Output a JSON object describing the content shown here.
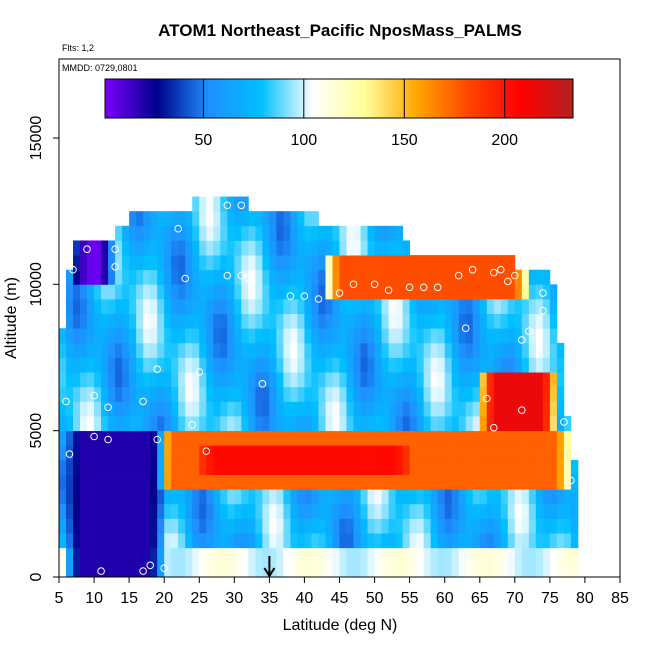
{
  "header": {
    "title": "ATOM1 Northeast_Pacific NposMass_PALMS",
    "flights": "Flts: 1,2",
    "dates": "MMDD: 0729,0801"
  },
  "chart_data": {
    "type": "heatmap",
    "title": "ATOM1 Northeast_Pacific NposMass_PALMS",
    "xlabel": "Latitude (deg N)",
    "ylabel": "Altitude (m)",
    "xlim": [
      5,
      85
    ],
    "ylim": [
      0,
      17700
    ],
    "x_ticks": [
      5,
      10,
      15,
      20,
      25,
      30,
      35,
      40,
      45,
      50,
      55,
      60,
      65,
      70,
      75,
      80,
      85
    ],
    "y_ticks": [
      0,
      5000,
      10000,
      15000
    ],
    "grid": false,
    "colorbar": {
      "range": [
        1,
        234
      ],
      "ticks": [
        50,
        100,
        150,
        200
      ],
      "colors": [
        "#7a00ff",
        "#00008b",
        "#1e90ff",
        "#00bfff",
        "#ffffff",
        "#ffff99",
        "#ffa500",
        "#ff4500",
        "#ff0000",
        "#b22222"
      ],
      "placement": "top"
    },
    "marker_latitude": 35,
    "cell_lat_step": 1,
    "cell_alt_step": 500,
    "altitude_profile": {
      "top_altitude": [
        {
          "lat": 5,
          "alt": 6500
        },
        {
          "lat": 6,
          "alt": 10000
        },
        {
          "lat": 8,
          "alt": 11500
        },
        {
          "lat": 13,
          "alt": 11500
        },
        {
          "lat": 15,
          "alt": 12000
        },
        {
          "lat": 22,
          "alt": 12500
        },
        {
          "lat": 24,
          "alt": 12500
        },
        {
          "lat": 28,
          "alt": 13000
        },
        {
          "lat": 31,
          "alt": 13000
        },
        {
          "lat": 32,
          "alt": 12500
        },
        {
          "lat": 42,
          "alt": 12000
        },
        {
          "lat": 53,
          "alt": 12000
        },
        {
          "lat": 55,
          "alt": 11000
        },
        {
          "lat": 60,
          "alt": 11000
        },
        {
          "lat": 67,
          "alt": 11000
        },
        {
          "lat": 70,
          "alt": 10500
        },
        {
          "lat": 75,
          "alt": 10000
        },
        {
          "lat": 76,
          "alt": 9500
        },
        {
          "lat": 77,
          "alt": 6000
        },
        {
          "lat": 79,
          "alt": 3000
        }
      ]
    },
    "value_bands": [
      {
        "name": "upper-orange-layer",
        "lat_min": 43,
        "lat_max": 72,
        "alt_min": 9500,
        "alt_max": 11000,
        "value": 180
      },
      {
        "name": "mid-orange-layer",
        "lat_min": 19,
        "lat_max": 78,
        "alt_min": 3000,
        "alt_max": 5000,
        "value": 175
      },
      {
        "name": "mid-red-core",
        "lat_min": 25,
        "lat_max": 55,
        "alt_min": 3500,
        "alt_max": 4500,
        "value": 205
      },
      {
        "name": "upper-red-core",
        "lat_min": 65,
        "lat_max": 76,
        "alt_min": 5000,
        "alt_max": 7000,
        "value": 215
      },
      {
        "name": "low-dark-blue",
        "lat_min": 6,
        "lat_max": 20,
        "alt_min": 0,
        "alt_max": 5000,
        "value": 20
      },
      {
        "name": "top-purple",
        "lat_min": 7,
        "lat_max": 13,
        "alt_min": 10000,
        "alt_max": 11500,
        "value": 5
      }
    ],
    "sample_points": [
      [
        6,
        6000
      ],
      [
        6.5,
        4200
      ],
      [
        7,
        10500
      ],
      [
        9,
        11200
      ],
      [
        10,
        6200
      ],
      [
        10,
        4800
      ],
      [
        11,
        200
      ],
      [
        12,
        5800
      ],
      [
        12,
        4700
      ],
      [
        13,
        10600
      ],
      [
        13,
        11200
      ],
      [
        17,
        6000
      ],
      [
        17,
        200
      ],
      [
        18,
        400
      ],
      [
        19,
        7100
      ],
      [
        19,
        4700
      ],
      [
        20,
        300
      ],
      [
        22,
        11900
      ],
      [
        23,
        10200
      ],
      [
        24,
        5200
      ],
      [
        25,
        7000
      ],
      [
        26,
        4300
      ],
      [
        26,
        800
      ],
      [
        29,
        12700
      ],
      [
        29,
        10300
      ],
      [
        31,
        10300
      ],
      [
        31,
        12700
      ],
      [
        32,
        10200
      ],
      [
        34,
        6600
      ],
      [
        38,
        9600
      ],
      [
        40,
        9600
      ],
      [
        42,
        9500
      ],
      [
        45,
        9700
      ],
      [
        47,
        10000
      ],
      [
        50,
        10000
      ],
      [
        52,
        9800
      ],
      [
        55,
        9900
      ],
      [
        57,
        9900
      ],
      [
        59,
        9900
      ],
      [
        62,
        10300
      ],
      [
        63,
        8500
      ],
      [
        64,
        10500
      ],
      [
        66,
        6100
      ],
      [
        67,
        5100
      ],
      [
        67,
        10400
      ],
      [
        68,
        10500
      ],
      [
        69,
        10100
      ],
      [
        70,
        10300
      ],
      [
        71,
        8100
      ],
      [
        71,
        5700
      ],
      [
        72,
        8400
      ],
      [
        74,
        9700
      ],
      [
        74,
        9100
      ],
      [
        77,
        5300
      ],
      [
        78,
        3300
      ],
      [
        78,
        200
      ]
    ]
  }
}
